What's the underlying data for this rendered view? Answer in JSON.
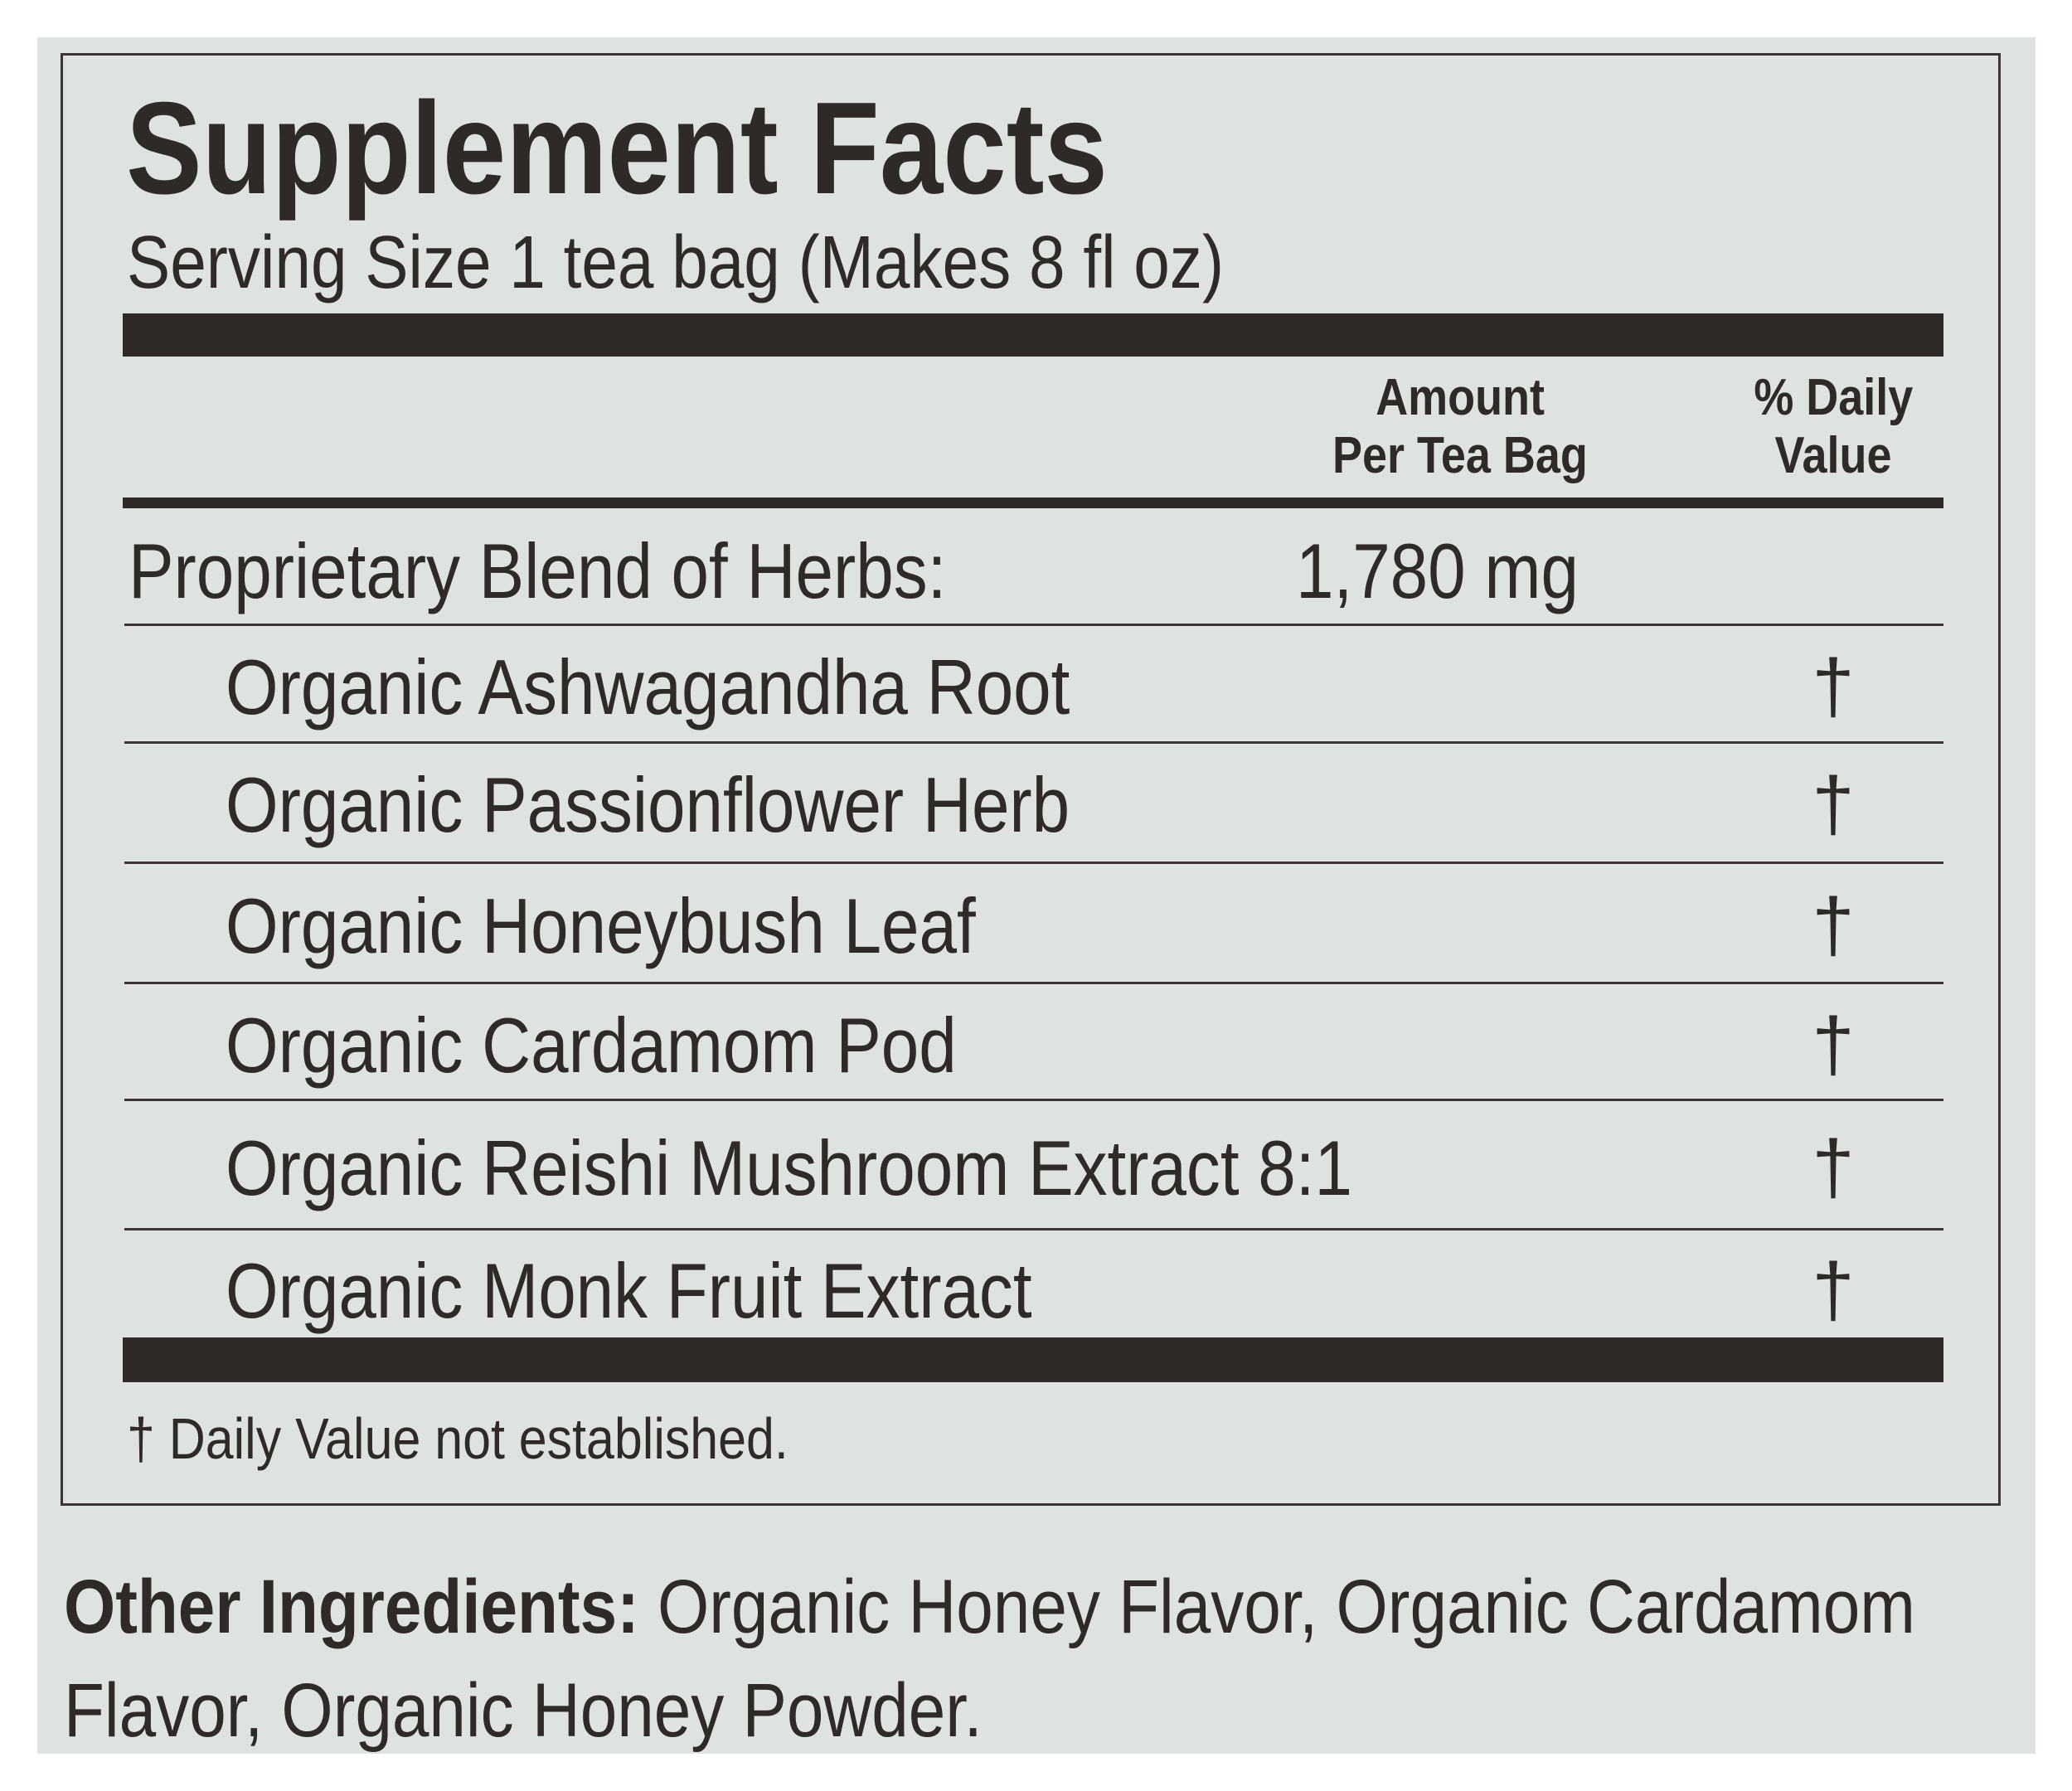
{
  "label": {
    "title": "Supplement Facts",
    "serving_size": "Serving Size 1 tea bag (Makes 8 fl oz)",
    "columns": {
      "amount_line1": "Amount",
      "amount_line2": "Per Tea Bag",
      "dv_line1": "% Daily",
      "dv_line2": "Value"
    },
    "blend": {
      "name": "Proprietary Blend of Herbs:",
      "amount": "1,780 mg"
    },
    "ingredients": [
      {
        "name": "Organic Ashwagandha Root",
        "dv": "†"
      },
      {
        "name": "Organic Passionflower Herb",
        "dv": "†"
      },
      {
        "name": "Organic Honeybush Leaf",
        "dv": "†"
      },
      {
        "name": "Organic Cardamom Pod",
        "dv": "†"
      },
      {
        "name": "Organic Reishi Mushroom Extract 8:1",
        "dv": "†"
      },
      {
        "name": "Organic Monk Fruit Extract",
        "dv": "†"
      }
    ],
    "footnote": "† Daily Value not established."
  },
  "other_ingredients": {
    "label": "Other Ingredients:",
    "line1": " Organic Honey Flavor, Organic Cardamom",
    "line2": "Flavor, Organic Honey Powder."
  },
  "colors": {
    "panel": "#dfe3df",
    "ink": "#2e2a28"
  }
}
